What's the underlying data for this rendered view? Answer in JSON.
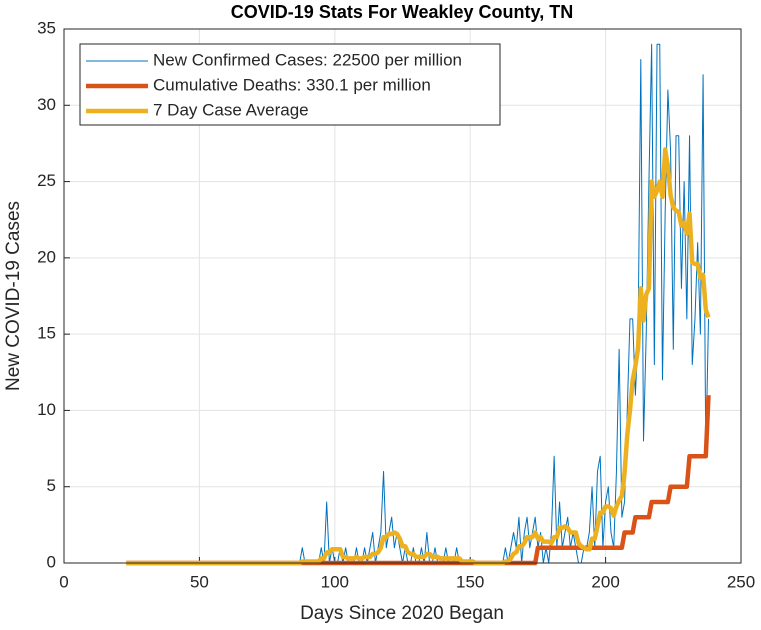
{
  "chart_data": {
    "type": "line",
    "title": "COVID-19 Stats For Weakley County, TN",
    "x_label": "Days Since 2020 Began",
    "y_label": "New COVID-19 Cases",
    "xlim": [
      0,
      250
    ],
    "xticks": [
      0,
      50,
      100,
      150,
      200,
      250
    ],
    "ylim": [
      0,
      35
    ],
    "yticks": [
      0,
      5,
      10,
      15,
      20,
      25,
      30,
      35
    ],
    "grid": true,
    "legend": "top-left",
    "x": [
      23,
      24,
      25,
      26,
      27,
      28,
      29,
      30,
      31,
      32,
      33,
      34,
      35,
      36,
      37,
      38,
      39,
      40,
      41,
      42,
      43,
      44,
      45,
      46,
      47,
      48,
      49,
      50,
      51,
      52,
      53,
      54,
      55,
      56,
      57,
      58,
      59,
      60,
      61,
      62,
      63,
      64,
      65,
      66,
      67,
      68,
      69,
      70,
      71,
      72,
      73,
      74,
      75,
      76,
      77,
      78,
      79,
      80,
      81,
      82,
      83,
      84,
      85,
      86,
      87,
      88,
      89,
      90,
      91,
      92,
      93,
      94,
      95,
      96,
      97,
      98,
      99,
      100,
      101,
      102,
      103,
      104,
      105,
      106,
      107,
      108,
      109,
      110,
      111,
      112,
      113,
      114,
      115,
      116,
      117,
      118,
      119,
      120,
      121,
      122,
      123,
      124,
      125,
      126,
      127,
      128,
      129,
      130,
      131,
      132,
      133,
      134,
      135,
      136,
      137,
      138,
      139,
      140,
      141,
      142,
      143,
      144,
      145,
      146,
      147,
      148,
      149,
      150,
      151,
      152,
      153,
      154,
      155,
      156,
      157,
      158,
      159,
      160,
      161,
      162,
      163,
      164,
      165,
      166,
      167,
      168,
      169,
      170,
      171,
      172,
      173,
      174,
      175,
      176,
      177,
      178,
      179,
      180,
      181,
      182,
      183,
      184,
      185,
      186,
      187,
      188,
      189,
      190,
      191,
      192,
      193,
      194,
      195,
      196,
      197,
      198,
      199,
      200,
      201,
      202,
      203,
      204,
      205,
      206,
      207,
      208,
      209,
      210,
      211,
      212,
      213,
      214,
      215,
      216,
      217,
      218,
      219,
      220,
      221,
      222,
      223,
      224,
      225,
      226,
      227,
      228,
      229,
      230,
      231,
      232,
      233,
      234,
      235,
      236,
      237,
      238
    ],
    "series": [
      {
        "name": "New Confirmed Cases: 22500 per million",
        "color": "#0072BD",
        "width": 1,
        "values": [
          0,
          0,
          0,
          0,
          0,
          0,
          0,
          0,
          0,
          0,
          0,
          0,
          0,
          0,
          0,
          0,
          0,
          0,
          0,
          0,
          0,
          0,
          0,
          0,
          0,
          0,
          0,
          0,
          0,
          0,
          0,
          0,
          0,
          0,
          0,
          0,
          0,
          0,
          0,
          0,
          0,
          0,
          0,
          0,
          0,
          0,
          0,
          0,
          0,
          0,
          0,
          0,
          0,
          0,
          0,
          0,
          0,
          0,
          0,
          0,
          0,
          0,
          0,
          0,
          0,
          1,
          0,
          0,
          0,
          0,
          0,
          0,
          1,
          0,
          4,
          0,
          1,
          0,
          0,
          1,
          0,
          1,
          0,
          0,
          0,
          1,
          0,
          0,
          1,
          0,
          1,
          2,
          0,
          1,
          2,
          6,
          1,
          2,
          3,
          1,
          2,
          1,
          0,
          1,
          0,
          0,
          1,
          0,
          0,
          1,
          0,
          2,
          0,
          0,
          1,
          0,
          0,
          0,
          1,
          0,
          0,
          0,
          1,
          0,
          0,
          0,
          0,
          0,
          0,
          0,
          0,
          0,
          0,
          0,
          0,
          0,
          0,
          0,
          0,
          0,
          1,
          0,
          1,
          2,
          1,
          3,
          0,
          2,
          3,
          1,
          2,
          3,
          1,
          2,
          0,
          1,
          0,
          2,
          7,
          1,
          4,
          1,
          2,
          3,
          1,
          2,
          1,
          0,
          0,
          1,
          1,
          2,
          5,
          1,
          6,
          7,
          1,
          4,
          5,
          2,
          1,
          6,
          14,
          3,
          4,
          10,
          16,
          16,
          11,
          15,
          33,
          8,
          15,
          25,
          34,
          13,
          34,
          34,
          12,
          23,
          31,
          27,
          14,
          28,
          28,
          18,
          25,
          16,
          28,
          13,
          16,
          21,
          15,
          32,
          7,
          16
        ]
      },
      {
        "name": "Cumulative Deaths: 330.1 per million",
        "color": "#D95319",
        "width": 4.5,
        "values": [
          0,
          0,
          0,
          0,
          0,
          0,
          0,
          0,
          0,
          0,
          0,
          0,
          0,
          0,
          0,
          0,
          0,
          0,
          0,
          0,
          0,
          0,
          0,
          0,
          0,
          0,
          0,
          0,
          0,
          0,
          0,
          0,
          0,
          0,
          0,
          0,
          0,
          0,
          0,
          0,
          0,
          0,
          0,
          0,
          0,
          0,
          0,
          0,
          0,
          0,
          0,
          0,
          0,
          0,
          0,
          0,
          0,
          0,
          0,
          0,
          0,
          0,
          0,
          0,
          0,
          0,
          0,
          0,
          0,
          0,
          0,
          0,
          0,
          0,
          0,
          0,
          0,
          0,
          0,
          0,
          0,
          0,
          0,
          0,
          0,
          0,
          0,
          0,
          0,
          0,
          0,
          0,
          0,
          0,
          0,
          0,
          0,
          0,
          0,
          0,
          0,
          0,
          0,
          0,
          0,
          0,
          0,
          0,
          0,
          0,
          0,
          0,
          0,
          0,
          0,
          0,
          0,
          0,
          0,
          0,
          0,
          0,
          0,
          0,
          0,
          0,
          0,
          0,
          0,
          0,
          0,
          0,
          0,
          0,
          0,
          0,
          0,
          0,
          0,
          0,
          0,
          0,
          0,
          0,
          0,
          0,
          0,
          0,
          0,
          0,
          0,
          0,
          1,
          1,
          1,
          1,
          1,
          1,
          1,
          1,
          1,
          1,
          1,
          1,
          1,
          1,
          1,
          1,
          1,
          1,
          1,
          1,
          1,
          1,
          1,
          1,
          1,
          1,
          1,
          1,
          1,
          1,
          1,
          1,
          2,
          2,
          2,
          2,
          3,
          3,
          3,
          3,
          3,
          3,
          4,
          4,
          4,
          4,
          4,
          4,
          4,
          5,
          5,
          5,
          5,
          5,
          5,
          5,
          7,
          7,
          7,
          7,
          7,
          7,
          7,
          11
        ]
      },
      {
        "name": "7 Day Case Average",
        "color": "#EDB120",
        "width": 4.5,
        "values": [
          0,
          0,
          0,
          0,
          0,
          0,
          0,
          0,
          0,
          0,
          0,
          0,
          0,
          0,
          0,
          0,
          0,
          0,
          0,
          0,
          0,
          0,
          0,
          0,
          0,
          0,
          0,
          0,
          0,
          0,
          0,
          0,
          0,
          0,
          0,
          0,
          0,
          0,
          0,
          0,
          0,
          0,
          0,
          0,
          0,
          0,
          0,
          0,
          0,
          0,
          0,
          0,
          0,
          0,
          0,
          0,
          0,
          0,
          0,
          0,
          0,
          0,
          0,
          0,
          0,
          0.1,
          0.1,
          0.1,
          0.1,
          0.1,
          0.1,
          0.1,
          0.3,
          0.3,
          0.7,
          0.7,
          0.9,
          0.9,
          0.9,
          0.9,
          0.4,
          0.4,
          0.3,
          0.3,
          0.3,
          0.4,
          0.3,
          0.3,
          0.4,
          0.4,
          0.4,
          0.6,
          0.6,
          0.7,
          1,
          1.7,
          1.7,
          1.9,
          1.9,
          2,
          1.9,
          1.6,
          1.1,
          1.1,
          0.7,
          0.6,
          0.6,
          0.4,
          0.4,
          0.4,
          0.4,
          0.6,
          0.6,
          0.4,
          0.4,
          0.4,
          0.3,
          0.3,
          0.3,
          0.3,
          0.3,
          0.3,
          0.3,
          0.3,
          0.1,
          0.1,
          0.1,
          0.1,
          0.1,
          0,
          0,
          0,
          0,
          0,
          0,
          0,
          0,
          0,
          0,
          0,
          0.1,
          0.1,
          0.3,
          0.6,
          0.7,
          1.1,
          1.1,
          1.3,
          1.7,
          1.7,
          1.7,
          2,
          1.6,
          1.7,
          1.4,
          1.4,
          1.4,
          1.3,
          1.7,
          1.7,
          2.3,
          2.3,
          2.4,
          2.3,
          2,
          2,
          2,
          1.3,
          1.1,
          1,
          0.9,
          0.9,
          1.6,
          1.6,
          2.4,
          3.3,
          3.3,
          3.7,
          3.7,
          3.6,
          3.1,
          3.7,
          4.1,
          4.4,
          5.9,
          8.4,
          10,
          12,
          12.9,
          14.1,
          18,
          15.9,
          17.6,
          18,
          25,
          24,
          24.4,
          25,
          24,
          27.1,
          26,
          24.1,
          23.3,
          23.1,
          23,
          22.1,
          22.3,
          21.6,
          22.9,
          19.7,
          19.6,
          19.6,
          18.7,
          18.9,
          16.6,
          16.1
        ]
      }
    ]
  }
}
